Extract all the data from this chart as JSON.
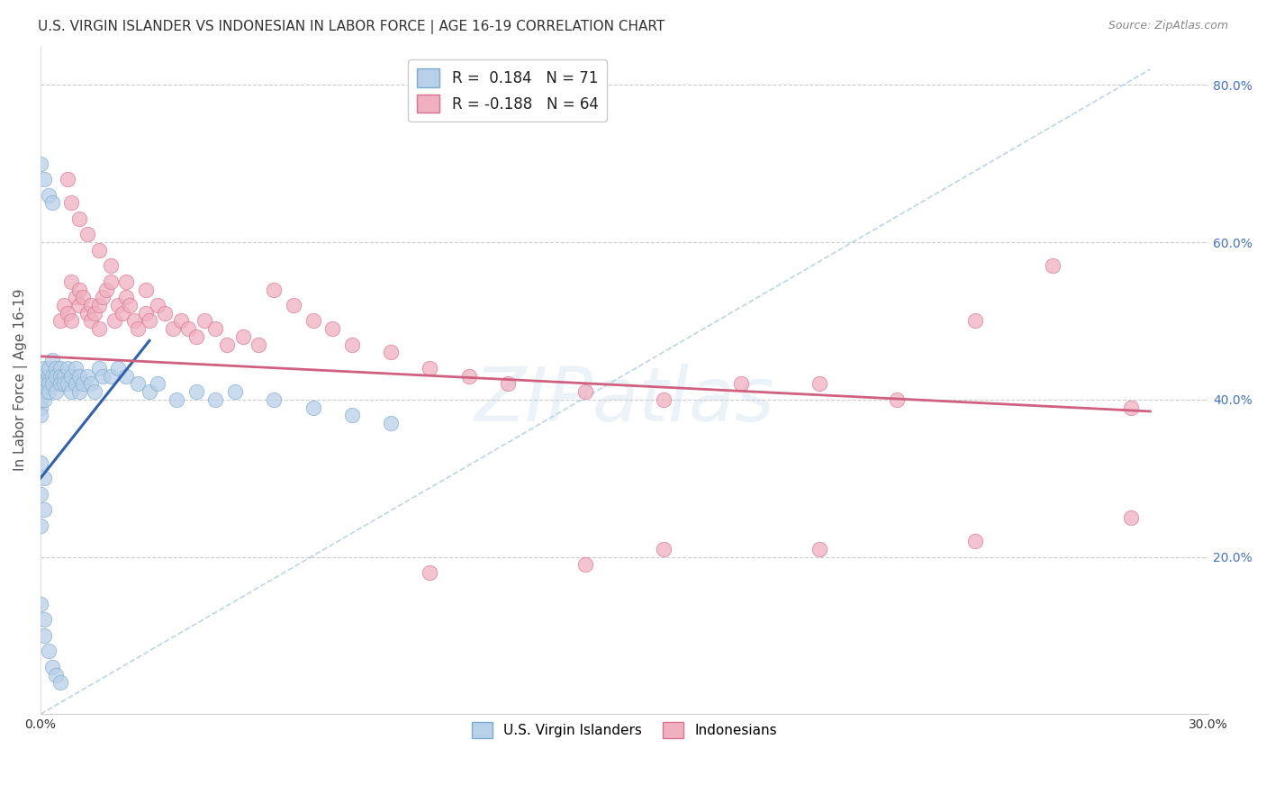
{
  "title": "U.S. VIRGIN ISLANDER VS INDONESIAN IN LABOR FORCE | AGE 16-19 CORRELATION CHART",
  "source": "Source: ZipAtlas.com",
  "ylabel": "In Labor Force | Age 16-19",
  "watermark": "ZIPatlas",
  "xmin": 0.0,
  "xmax": 0.3,
  "ymin": 0.0,
  "ymax": 0.85,
  "yticks": [
    0.2,
    0.4,
    0.6,
    0.8
  ],
  "right_ytick_labels": [
    "20.0%",
    "40.0%",
    "60.0%",
    "80.0%"
  ],
  "color_blue_fill": "#b8d0e8",
  "color_blue_edge": "#7aaad0",
  "color_pink_fill": "#f0b0c0",
  "color_pink_edge": "#d87090",
  "color_blue_line": "#3060b0",
  "color_pink_line": "#d06080",
  "color_dashed": "#aaccdd",
  "background_color": "#ffffff",
  "blue_scatter_x": [
    0.0,
    0.0,
    0.0,
    0.0,
    0.0,
    0.001,
    0.001,
    0.001,
    0.001,
    0.001,
    0.002,
    0.002,
    0.002,
    0.002,
    0.003,
    0.003,
    0.003,
    0.004,
    0.004,
    0.004,
    0.005,
    0.005,
    0.005,
    0.006,
    0.006,
    0.007,
    0.007,
    0.008,
    0.008,
    0.009,
    0.009,
    0.01,
    0.01,
    0.011,
    0.012,
    0.013,
    0.014,
    0.015,
    0.016,
    0.018,
    0.02,
    0.022,
    0.025,
    0.028,
    0.03,
    0.035,
    0.04,
    0.045,
    0.05,
    0.06,
    0.07,
    0.08,
    0.09,
    0.0,
    0.001,
    0.002,
    0.003,
    0.0,
    0.001,
    0.0,
    0.001,
    0.0,
    0.0,
    0.001,
    0.001,
    0.002,
    0.003,
    0.004,
    0.005
  ],
  "blue_scatter_y": [
    0.42,
    0.41,
    0.4,
    0.39,
    0.38,
    0.43,
    0.42,
    0.41,
    0.4,
    0.44,
    0.43,
    0.42,
    0.41,
    0.44,
    0.43,
    0.42,
    0.45,
    0.44,
    0.43,
    0.41,
    0.44,
    0.43,
    0.42,
    0.43,
    0.42,
    0.44,
    0.42,
    0.43,
    0.41,
    0.44,
    0.42,
    0.43,
    0.41,
    0.42,
    0.43,
    0.42,
    0.41,
    0.44,
    0.43,
    0.43,
    0.44,
    0.43,
    0.42,
    0.41,
    0.42,
    0.4,
    0.41,
    0.4,
    0.41,
    0.4,
    0.39,
    0.38,
    0.37,
    0.7,
    0.68,
    0.66,
    0.65,
    0.32,
    0.3,
    0.28,
    0.26,
    0.24,
    0.14,
    0.12,
    0.1,
    0.08,
    0.06,
    0.05,
    0.04
  ],
  "pink_scatter_x": [
    0.005,
    0.006,
    0.007,
    0.008,
    0.008,
    0.009,
    0.01,
    0.01,
    0.011,
    0.012,
    0.013,
    0.013,
    0.014,
    0.015,
    0.015,
    0.016,
    0.017,
    0.018,
    0.019,
    0.02,
    0.021,
    0.022,
    0.023,
    0.024,
    0.025,
    0.027,
    0.028,
    0.03,
    0.032,
    0.034,
    0.036,
    0.038,
    0.04,
    0.042,
    0.045,
    0.048,
    0.052,
    0.056,
    0.06,
    0.065,
    0.07,
    0.075,
    0.08,
    0.09,
    0.1,
    0.11,
    0.12,
    0.14,
    0.16,
    0.18,
    0.2,
    0.22,
    0.24,
    0.26,
    0.28,
    0.007,
    0.008,
    0.01,
    0.012,
    0.015,
    0.018,
    0.022,
    0.027
  ],
  "pink_scatter_y": [
    0.5,
    0.52,
    0.51,
    0.5,
    0.55,
    0.53,
    0.52,
    0.54,
    0.53,
    0.51,
    0.52,
    0.5,
    0.51,
    0.52,
    0.49,
    0.53,
    0.54,
    0.55,
    0.5,
    0.52,
    0.51,
    0.53,
    0.52,
    0.5,
    0.49,
    0.51,
    0.5,
    0.52,
    0.51,
    0.49,
    0.5,
    0.49,
    0.48,
    0.5,
    0.49,
    0.47,
    0.48,
    0.47,
    0.54,
    0.52,
    0.5,
    0.49,
    0.47,
    0.46,
    0.44,
    0.43,
    0.42,
    0.41,
    0.4,
    0.42,
    0.42,
    0.4,
    0.5,
    0.57,
    0.39,
    0.68,
    0.65,
    0.63,
    0.61,
    0.59,
    0.57,
    0.55,
    0.54
  ],
  "pink_outlier_x": [
    0.16,
    0.2,
    0.24,
    0.28,
    0.1,
    0.14
  ],
  "pink_outlier_y": [
    0.21,
    0.21,
    0.22,
    0.25,
    0.18,
    0.19
  ],
  "blue_line_x": [
    0.0,
    0.028
  ],
  "blue_line_y": [
    0.3,
    0.475
  ],
  "pink_line_x": [
    0.0,
    0.285
  ],
  "pink_line_y": [
    0.455,
    0.385
  ],
  "diag_line_x": [
    0.0,
    0.285
  ],
  "diag_line_y": [
    0.0,
    0.82
  ]
}
